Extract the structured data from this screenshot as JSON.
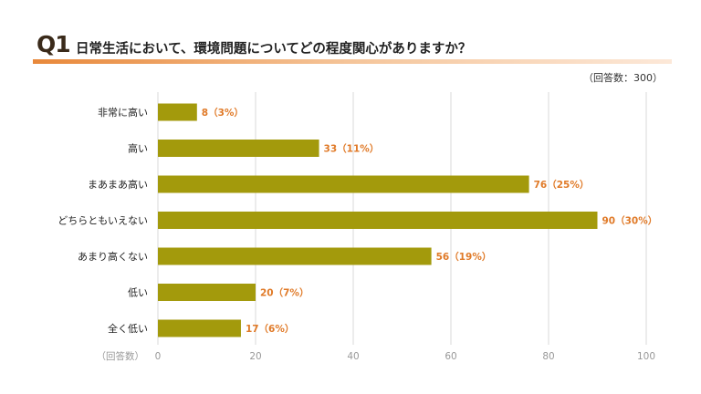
{
  "question": {
    "number": "Q1",
    "text": "日常生活において、環境問題についてどの程度関心がありますか？"
  },
  "respondents": "（回答数：300）",
  "colors": {
    "bar": "#a39a0c",
    "value_label": "#e07a28",
    "grid": "#d9d9d9",
    "accent": "#e8883a"
  },
  "chart_data": {
    "type": "bar",
    "orientation": "horizontal",
    "categories": [
      "非常に高い",
      "高い",
      "まあまあ高い",
      "どちらともいえない",
      "あまり高くない",
      "低い",
      "全く低い"
    ],
    "values": [
      8,
      33,
      76,
      90,
      56,
      20,
      17
    ],
    "percents": [
      "3%",
      "11%",
      "25%",
      "30%",
      "19%",
      "7%",
      "6%"
    ],
    "value_labels": [
      "8（3%）",
      "33（11%）",
      "76（25%）",
      "90（30%）",
      "56（19%）",
      "20（7%）",
      "17（6%）"
    ],
    "xlabel": "（回答数）",
    "xlim": [
      0,
      100
    ],
    "xticks": [
      0,
      20,
      40,
      60,
      80,
      100
    ],
    "xtick_labels": [
      "0",
      "20",
      "40",
      "60",
      "80",
      "100"
    ],
    "grid": true
  }
}
